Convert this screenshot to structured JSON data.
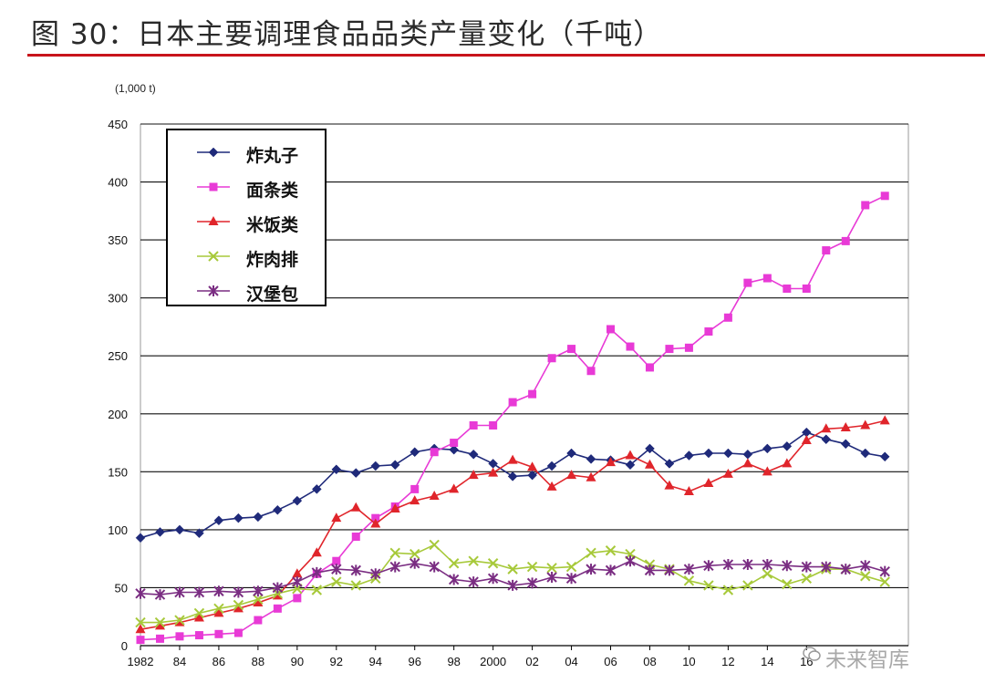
{
  "title": "图 30：日本主要调理食品品类产量变化（千吨）",
  "watermark": "未来智库",
  "chart_data": {
    "type": "line",
    "unit_label": "(1,000 t)",
    "x": [
      1982,
      1983,
      1984,
      1985,
      1986,
      1987,
      1988,
      1989,
      1990,
      1991,
      1992,
      1993,
      1994,
      1995,
      1996,
      1997,
      1998,
      1999,
      2000,
      2001,
      2002,
      2003,
      2004,
      2005,
      2006,
      2007,
      2008,
      2009,
      2010,
      2011,
      2012,
      2013,
      2014,
      2015,
      2016,
      2017,
      2018,
      2019,
      2020
    ],
    "x_tick_labels": [
      "1982",
      "84",
      "86",
      "88",
      "90",
      "92",
      "94",
      "96",
      "98",
      "2000",
      "02",
      "04",
      "06",
      "08",
      "10",
      "12",
      "14",
      "16"
    ],
    "x_tick_values": [
      1982,
      1984,
      1986,
      1988,
      1990,
      1992,
      1994,
      1996,
      1998,
      2000,
      2002,
      2004,
      2006,
      2008,
      2010,
      2012,
      2014,
      2016
    ],
    "y_ticks": [
      0,
      50,
      100,
      150,
      200,
      250,
      300,
      350,
      400,
      450
    ],
    "ylim": [
      0,
      450
    ],
    "xlim": [
      1982,
      2021.2
    ],
    "grid": true,
    "legend_position": "top-left",
    "series": [
      {
        "name": "炸丸子",
        "color": "#1f2a7a",
        "marker": "diamond",
        "values": [
          93,
          98,
          100,
          97,
          108,
          110,
          111,
          117,
          125,
          135,
          152,
          149,
          155,
          156,
          167,
          170,
          169,
          165,
          157,
          146,
          147,
          155,
          166,
          161,
          160,
          156,
          170,
          157,
          164,
          166,
          166,
          165,
          170,
          172,
          184,
          178,
          174,
          166,
          163
        ]
      },
      {
        "name": "面条类",
        "color": "#e83ad6",
        "marker": "square",
        "values": [
          5,
          6,
          8,
          9,
          10,
          11,
          22,
          32,
          41,
          62,
          73,
          94,
          110,
          120,
          135,
          167,
          175,
          190,
          190,
          210,
          217,
          248,
          256,
          237,
          273,
          258,
          240,
          256,
          257,
          271,
          283,
          313,
          317,
          308,
          308,
          341,
          349,
          380,
          388
        ]
      },
      {
        "name": "米饭类",
        "color": "#e0252b",
        "marker": "triangle",
        "values": [
          14,
          17,
          20,
          24,
          28,
          32,
          37,
          43,
          62,
          80,
          110,
          119,
          105,
          118,
          125,
          129,
          135,
          147,
          149,
          160,
          154,
          137,
          147,
          145,
          158,
          164,
          156,
          138,
          133,
          140,
          148,
          157,
          150,
          157,
          177,
          187,
          188,
          190,
          194
        ]
      },
      {
        "name": "炸肉排",
        "color": "#a7c93a",
        "marker": "x",
        "values": [
          20,
          20,
          22,
          28,
          32,
          35,
          40,
          45,
          49,
          48,
          55,
          52,
          58,
          80,
          79,
          87,
          71,
          73,
          71,
          66,
          68,
          67,
          68,
          80,
          82,
          79,
          70,
          66,
          56,
          52,
          48,
          52,
          62,
          53,
          58,
          66,
          66,
          60,
          55
        ]
      },
      {
        "name": "汉堡包",
        "color": "#7a2d82",
        "marker": "star",
        "values": [
          45,
          44,
          46,
          46,
          47,
          46,
          47,
          50,
          55,
          63,
          66,
          65,
          62,
          68,
          71,
          68,
          57,
          55,
          58,
          52,
          54,
          59,
          58,
          66,
          65,
          73,
          65,
          65,
          66,
          69,
          70,
          70,
          70,
          69,
          68,
          68,
          66,
          69,
          64
        ]
      }
    ]
  }
}
